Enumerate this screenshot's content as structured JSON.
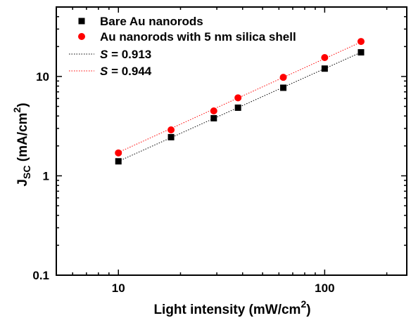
{
  "chart_data": {
    "type": "scatter",
    "x_scale": "log",
    "y_scale": "log",
    "xlim": [
      5,
      250
    ],
    "ylim": [
      0.1,
      50
    ],
    "grid": false,
    "legend_position": "top-left",
    "xlabel": {
      "main": "Light intensity (mW/cm",
      "sup": "2",
      "tail": ")"
    },
    "ylabel": {
      "main": "J",
      "sub": "SC",
      "mid": " (mA/cm",
      "sup": "2",
      "tail": ")"
    },
    "x_ticks": [
      {
        "value": 10,
        "label": "10"
      },
      {
        "value": 100,
        "label": "100"
      }
    ],
    "y_ticks": [
      {
        "value": 0.1,
        "label": "0.1"
      },
      {
        "value": 1,
        "label": "1"
      },
      {
        "value": 10,
        "label": "10"
      }
    ],
    "series": [
      {
        "name": "Bare Au nanorods",
        "marker": "square",
        "color": "#000000",
        "x": [
          10,
          18,
          29,
          38,
          63,
          100,
          150
        ],
        "y": [
          1.4,
          2.45,
          3.8,
          4.85,
          7.7,
          12.0,
          17.5
        ]
      },
      {
        "name": "Au nanorods with 5 nm silica shell",
        "marker": "circle",
        "color": "#ff0000",
        "x": [
          10,
          18,
          29,
          38,
          63,
          100,
          150
        ],
        "y": [
          1.7,
          2.9,
          4.5,
          6.1,
          9.8,
          15.5,
          22.5
        ]
      }
    ],
    "fits": [
      {
        "label_var": "S",
        "label_rest": " = 0.913",
        "color": "#000000",
        "style": "dotted",
        "x_range": [
          10,
          150
        ],
        "y_range": [
          1.4,
          17.5
        ]
      },
      {
        "label_var": "S",
        "label_rest": " = 0.944",
        "color": "#ff0000",
        "style": "dotted",
        "x_range": [
          10,
          150
        ],
        "y_range": [
          1.72,
          22.2
        ]
      }
    ]
  }
}
